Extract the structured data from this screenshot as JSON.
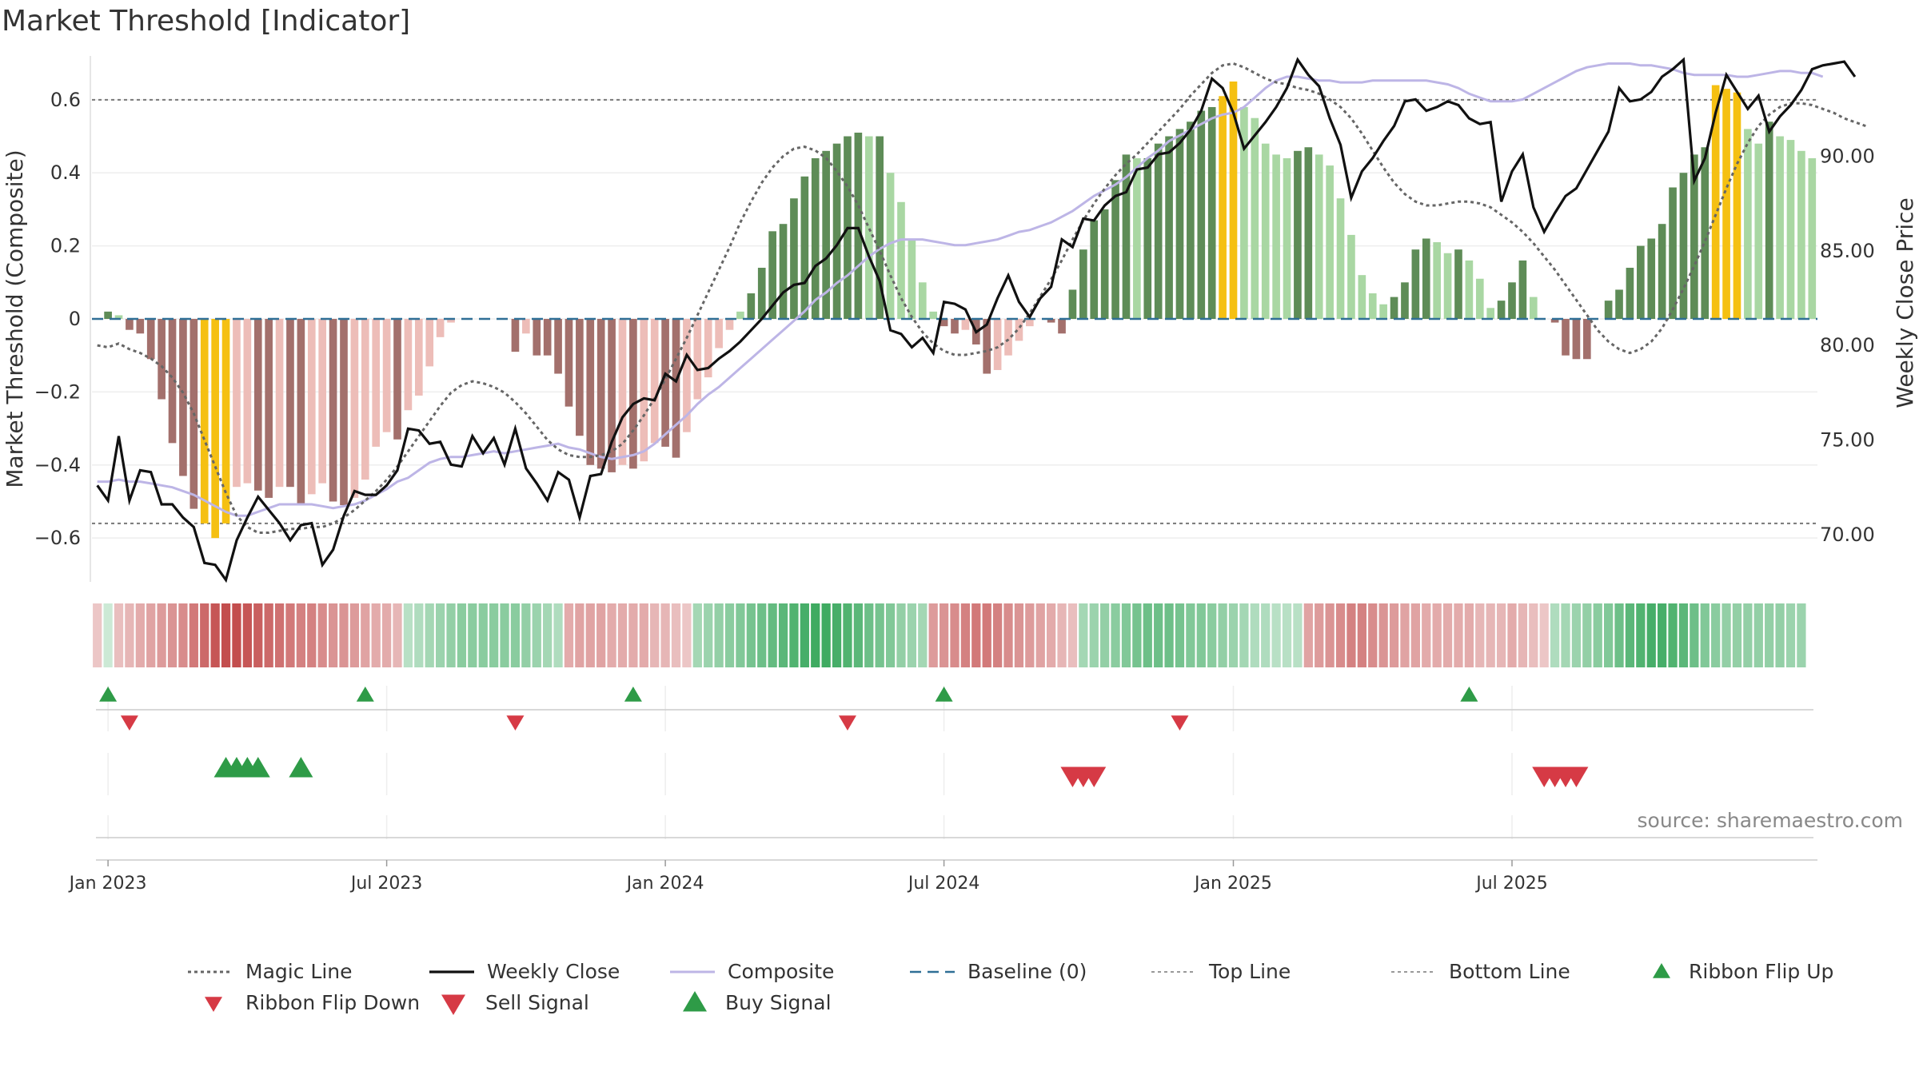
{
  "title": "Market Threshold [Indicator]",
  "source": "source: sharemaestro.com",
  "colors": {
    "bull_dark": "#5e8c57",
    "bull_light": "#a9d7a3",
    "bear_dark": "#a3706c",
    "bear_light": "#edbdb8",
    "extreme": "#f5c012",
    "close_line": "#111111",
    "composite_line": "#bdb5e6",
    "magic_line": "#666666",
    "baseline": "#2f6f96",
    "buy": "#2e9b47",
    "sell": "#d63a45"
  },
  "chart_data": {
    "type": "bar",
    "title": "Market Threshold [Indicator]",
    "ylabel": "Market Threshold (Composite)",
    "ylabel2": "Weekly Close Price",
    "ylim": [
      -0.72,
      0.72
    ],
    "ylim2": [
      67.5,
      95.3
    ],
    "yticks": [
      -0.6,
      -0.4,
      -0.2,
      0,
      0.2,
      0.4,
      0.6
    ],
    "ytick_labels": [
      "−0.6",
      "−0.4",
      "−0.2",
      "0",
      "0.2",
      "0.4",
      "0.6"
    ],
    "y2ticks": [
      70,
      75,
      80,
      85,
      90
    ],
    "y2tick_labels": [
      "70.00",
      "75.00",
      "80.00",
      "85.00",
      "90.00"
    ],
    "xticks": [
      "Jan 2023",
      "Jul 2023",
      "Jan 2024",
      "Jul 2024",
      "Jan 2025",
      "Jul 2025"
    ],
    "top_line": 0.6,
    "bottom_line": -0.56,
    "grid": true,
    "legend_position": "bottom",
    "legend": [
      "Magic Line",
      "Weekly Close",
      "Composite",
      "Baseline (0)",
      "Top Line",
      "Bottom Line",
      "Ribbon Flip Up",
      "Ribbon Flip Down",
      "Sell Signal",
      "Buy Signal"
    ],
    "start_week": "2022-12-26",
    "histogram": [
      0,
      0.02,
      0.01,
      -0.03,
      -0.04,
      -0.11,
      -0.22,
      -0.34,
      -0.43,
      -0.52,
      -0.56,
      -0.6,
      -0.56,
      -0.46,
      -0.45,
      -0.47,
      -0.49,
      -0.46,
      -0.46,
      -0.51,
      -0.48,
      -0.45,
      -0.5,
      -0.51,
      -0.49,
      -0.44,
      -0.35,
      -0.31,
      -0.33,
      -0.25,
      -0.21,
      -0.13,
      -0.05,
      -0.01,
      0,
      0,
      0,
      0,
      0,
      -0.09,
      -0.04,
      -0.1,
      -0.1,
      -0.15,
      -0.24,
      -0.32,
      -0.4,
      -0.41,
      -0.42,
      -0.4,
      -0.41,
      -0.39,
      -0.34,
      -0.35,
      -0.38,
      -0.31,
      -0.22,
      -0.16,
      -0.08,
      -0.03,
      0.02,
      0.07,
      0.14,
      0.24,
      0.26,
      0.33,
      0.39,
      0.44,
      0.46,
      0.48,
      0.5,
      0.51,
      0.5,
      0.5,
      0.4,
      0.32,
      0.22,
      0.1,
      0.02,
      -0.02,
      -0.04,
      -0.03,
      -0.07,
      -0.15,
      -0.14,
      -0.1,
      -0.06,
      -0.02,
      0,
      -0.01,
      -0.04,
      0.08,
      0.19,
      0.27,
      0.3,
      0.38,
      0.45,
      0.44,
      0.44,
      0.48,
      0.5,
      0.52,
      0.54,
      0.57,
      0.58,
      0.61,
      0.65,
      0.58,
      0.55,
      0.48,
      0.45,
      0.44,
      0.46,
      0.47,
      0.45,
      0.42,
      0.33,
      0.23,
      0.12,
      0.07,
      0.04,
      0.06,
      0.1,
      0.19,
      0.22,
      0.21,
      0.18,
      0.19,
      0.16,
      0.11,
      0.03,
      0.05,
      0.1,
      0.16,
      0.06,
      0,
      -0.01,
      -0.1,
      -0.11,
      -0.11,
      0,
      0.05,
      0.08,
      0.14,
      0.2,
      0.22,
      0.26,
      0.36,
      0.4,
      0.45,
      0.47,
      0.64,
      0.63,
      0.62,
      0.52,
      0.48,
      0.54,
      0.5,
      0.49,
      0.46,
      0.44
    ],
    "weekly_close": [
      72.6,
      71.8,
      75.2,
      71.8,
      73.4,
      73.3,
      71.6,
      71.6,
      70.9,
      70.4,
      68.5,
      68.4,
      67.6,
      69.7,
      70.9,
      72.0,
      71.3,
      70.6,
      69.7,
      70.5,
      70.6,
      68.4,
      69.2,
      71.0,
      72.3,
      72.1,
      72.1,
      72.6,
      73.4,
      75.6,
      75.5,
      74.8,
      74.9,
      73.7,
      73.6,
      75.2,
      74.3,
      75.1,
      73.7,
      75.6,
      73.5,
      72.7,
      71.8,
      73.3,
      72.9,
      70.9,
      73.1,
      73.2,
      74.9,
      76.2,
      76.9,
      77.2,
      77.1,
      78.5,
      78.1,
      79.5,
      78.7,
      78.8,
      79.3,
      79.7,
      80.2,
      80.8,
      81.4,
      82.1,
      82.8,
      83.2,
      83.3,
      84.2,
      84.6,
      85.3,
      86.2,
      86.2,
      84.7,
      83.4,
      80.8,
      80.6,
      79.9,
      80.4,
      79.6,
      82.3,
      82.2,
      81.9,
      80.7,
      81.1,
      82.5,
      83.7,
      82.3,
      81.5,
      82.5,
      83.1,
      85.6,
      85.2,
      86.7,
      86.6,
      87.4,
      87.9,
      88.1,
      89.3,
      89.4,
      90.1,
      90.2,
      90.7,
      91.4,
      92.4,
      94.1,
      93.6,
      92.3,
      90.4,
      91.1,
      91.8,
      92.6,
      93.6,
      95.1,
      94.3,
      93.7,
      92.0,
      90.6,
      87.8,
      89.2,
      89.9,
      90.8,
      91.6,
      92.9,
      93.0,
      92.4,
      92.6,
      92.9,
      92.7,
      92.0,
      91.7,
      91.8,
      87.6,
      89.2,
      90.1,
      87.3,
      86.0,
      87.0,
      87.9,
      88.3,
      89.3,
      90.3,
      91.3,
      93.6,
      92.9,
      93.0,
      93.4,
      94.2,
      94.6,
      95.1,
      88.7,
      89.9,
      92.3,
      94.3,
      93.4,
      92.5,
      93.2,
      91.3,
      92.1,
      92.7,
      93.5,
      94.6,
      94.8,
      94.9,
      95.0,
      94.2
    ],
    "composite": [
      72.8,
      72.8,
      72.9,
      72.8,
      72.8,
      72.7,
      72.6,
      72.5,
      72.3,
      72.1,
      71.8,
      71.5,
      71.2,
      71.0,
      71.0,
      71.2,
      71.4,
      71.6,
      71.6,
      71.6,
      71.6,
      71.5,
      71.4,
      71.5,
      71.6,
      71.8,
      72.1,
      72.4,
      72.8,
      73.0,
      73.4,
      73.8,
      74.0,
      74.1,
      74.1,
      74.2,
      74.3,
      74.4,
      74.3,
      74.4,
      74.5,
      74.6,
      74.7,
      74.8,
      74.6,
      74.5,
      74.3,
      74.1,
      74.0,
      74.1,
      74.2,
      74.4,
      74.8,
      75.3,
      75.8,
      76.3,
      76.9,
      77.4,
      77.8,
      78.3,
      78.8,
      79.3,
      79.8,
      80.3,
      80.8,
      81.3,
      81.8,
      82.4,
      82.8,
      83.3,
      83.7,
      84.2,
      84.7,
      85.1,
      85.4,
      85.6,
      85.6,
      85.6,
      85.5,
      85.4,
      85.3,
      85.3,
      85.4,
      85.5,
      85.6,
      85.8,
      86.0,
      86.1,
      86.3,
      86.5,
      86.8,
      87.1,
      87.5,
      87.9,
      88.2,
      88.5,
      88.9,
      89.4,
      89.9,
      90.3,
      90.8,
      91.1,
      91.4,
      91.7,
      92.0,
      92.2,
      92.3,
      92.6,
      93.1,
      93.6,
      94.0,
      94.2,
      94.2,
      94.1,
      94.0,
      94.0,
      93.9,
      93.9,
      93.9,
      94.0,
      94.0,
      94.0,
      94.0,
      94.0,
      94.0,
      93.9,
      93.8,
      93.6,
      93.3,
      93.1,
      92.9,
      92.9,
      92.9,
      93.0,
      93.3,
      93.6,
      93.9,
      94.2,
      94.5,
      94.7,
      94.8,
      94.9,
      94.9,
      94.9,
      94.8,
      94.8,
      94.7,
      94.6,
      94.4,
      94.3,
      94.3,
      94.3,
      94.3,
      94.2,
      94.2,
      94.3,
      94.4,
      94.5,
      94.5,
      94.4,
      94.4,
      94.2
    ],
    "magic_line": [
      80.0,
      79.9,
      80.1,
      79.8,
      79.6,
      79.3,
      78.9,
      78.3,
      77.5,
      76.4,
      75.0,
      73.6,
      72.2,
      71.0,
      70.4,
      70.1,
      70.1,
      70.2,
      70.3,
      70.3,
      70.4,
      70.4,
      70.6,
      70.9,
      71.3,
      71.8,
      72.3,
      72.9,
      73.6,
      74.4,
      75.2,
      76.0,
      76.8,
      77.5,
      77.9,
      78.1,
      78.0,
      77.8,
      77.5,
      77.0,
      76.4,
      75.7,
      75.0,
      74.5,
      74.2,
      74.1,
      74.1,
      74.2,
      74.4,
      74.8,
      75.5,
      76.3,
      77.2,
      78.2,
      79.3,
      80.4,
      81.6,
      82.8,
      84.0,
      85.2,
      86.5,
      87.6,
      88.6,
      89.4,
      90.0,
      90.4,
      90.5,
      90.3,
      89.9,
      89.2,
      88.4,
      87.4,
      86.2,
      85.0,
      83.7,
      82.5,
      81.5,
      80.7,
      80.1,
      79.7,
      79.5,
      79.5,
      79.6,
      79.7,
      79.9,
      80.3,
      80.9,
      81.7,
      82.6,
      83.5,
      84.5,
      85.6,
      86.6,
      87.5,
      88.3,
      89.0,
      89.6,
      90.1,
      90.7,
      91.3,
      91.9,
      92.5,
      93.2,
      93.8,
      94.4,
      94.8,
      94.9,
      94.7,
      94.4,
      94.1,
      93.9,
      93.8,
      93.6,
      93.5,
      93.3,
      93.0,
      92.6,
      92.0,
      91.2,
      90.3,
      89.4,
      88.6,
      88.0,
      87.6,
      87.4,
      87.4,
      87.5,
      87.6,
      87.6,
      87.5,
      87.3,
      86.9,
      86.5,
      86.0,
      85.4,
      84.7,
      84.0,
      83.2,
      82.4,
      81.6,
      80.8,
      80.2,
      79.8,
      79.6,
      79.8,
      80.2,
      80.9,
      81.9,
      83.0,
      84.2,
      85.5,
      86.9,
      88.3,
      89.6,
      90.7,
      91.6,
      92.2,
      92.6,
      92.8,
      92.8,
      92.7,
      92.5,
      92.3,
      92.0,
      91.8,
      91.6
    ],
    "ribbon": [
      -0.15,
      0.1,
      -0.2,
      -0.25,
      -0.3,
      -0.35,
      -0.4,
      -0.45,
      -0.5,
      -0.6,
      -0.7,
      -0.8,
      -0.85,
      -0.85,
      -0.8,
      -0.75,
      -0.7,
      -0.65,
      -0.6,
      -0.55,
      -0.55,
      -0.5,
      -0.45,
      -0.45,
      -0.4,
      -0.35,
      -0.3,
      -0.3,
      -0.25,
      0.2,
      0.25,
      0.3,
      0.35,
      0.4,
      0.45,
      0.45,
      0.45,
      0.45,
      0.45,
      0.45,
      0.4,
      0.35,
      0.3,
      0.25,
      -0.3,
      -0.35,
      -0.35,
      -0.35,
      -0.3,
      -0.3,
      -0.3,
      -0.3,
      -0.25,
      -0.25,
      -0.2,
      -0.15,
      0.3,
      0.35,
      0.4,
      0.45,
      0.5,
      0.55,
      0.6,
      0.65,
      0.7,
      0.75,
      0.8,
      0.85,
      0.85,
      0.8,
      0.75,
      0.7,
      0.6,
      0.55,
      0.5,
      0.4,
      0.35,
      0.3,
      -0.4,
      -0.45,
      -0.5,
      -0.55,
      -0.6,
      -0.6,
      -0.55,
      -0.5,
      -0.45,
      -0.4,
      -0.35,
      -0.3,
      -0.25,
      -0.2,
      0.3,
      0.35,
      0.4,
      0.45,
      0.5,
      0.55,
      0.6,
      0.6,
      0.6,
      0.55,
      0.5,
      0.5,
      0.45,
      0.4,
      0.35,
      0.3,
      0.25,
      0.25,
      0.2,
      0.2,
      0.2,
      -0.35,
      -0.4,
      -0.45,
      -0.5,
      -0.55,
      -0.55,
      -0.5,
      -0.45,
      -0.4,
      -0.35,
      -0.35,
      -0.3,
      -0.3,
      -0.3,
      -0.3,
      -0.3,
      -0.25,
      -0.25,
      -0.25,
      -0.3,
      -0.25,
      -0.2,
      -0.15,
      0.25,
      0.3,
      0.35,
      0.4,
      0.45,
      0.5,
      0.6,
      0.7,
      0.75,
      0.8,
      0.8,
      0.75,
      0.7,
      0.6,
      0.5,
      0.45,
      0.4,
      0.4,
      0.4,
      0.4,
      0.4,
      0.4,
      0.35,
      0.35
    ],
    "ribbon_flip_up": [
      "2023-01-02",
      "2023-06-19",
      "2023-12-11",
      "2024-07-01",
      "2025-06-09"
    ],
    "ribbon_flip_down": [
      "2023-01-16",
      "2023-09-25",
      "2024-04-29",
      "2024-12-02"
    ],
    "buy_signals": [
      "2023-03-20",
      "2023-03-27",
      "2023-04-03",
      "2023-04-10",
      "2023-05-08"
    ],
    "sell_signals": [
      "2024-09-23",
      "2024-09-30",
      "2024-10-07",
      "2025-07-28",
      "2025-08-04",
      "2025-08-11",
      "2025-08-18"
    ]
  }
}
